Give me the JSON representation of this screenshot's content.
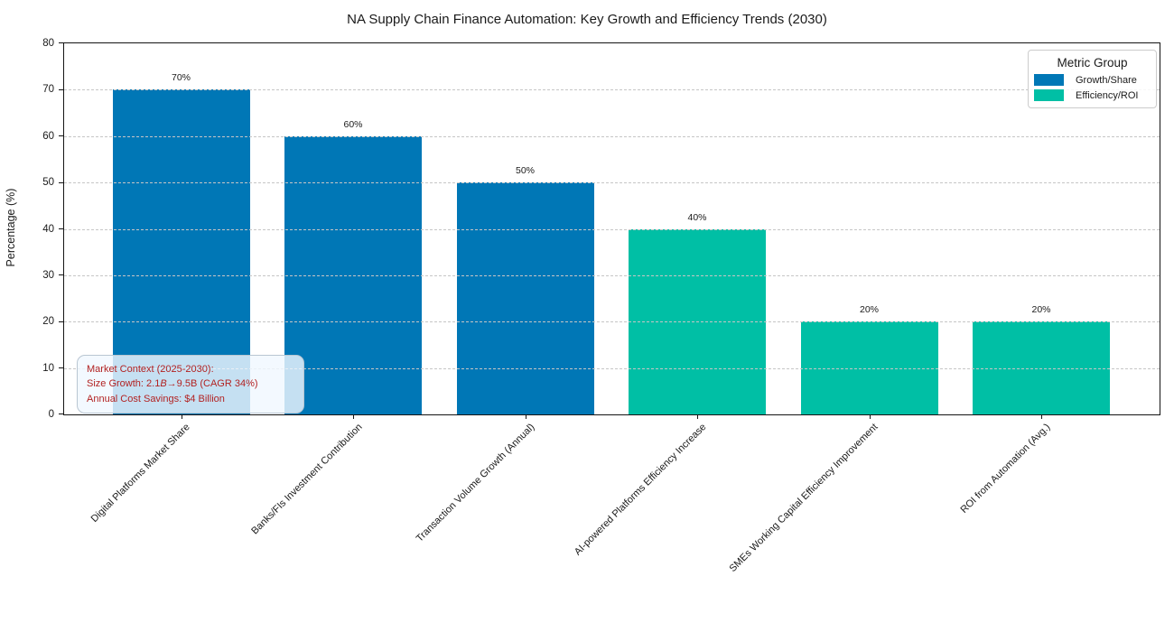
{
  "chart_data": {
    "type": "bar",
    "title": "NA Supply Chain Finance Automation: Key Growth and Efficiency Trends (2030)",
    "xlabel": "",
    "ylabel": "Percentage (%)",
    "ylim": [
      0,
      80
    ],
    "yticks": [
      0,
      10,
      20,
      30,
      40,
      50,
      60,
      70,
      80
    ],
    "grid": "horizontal-dashed",
    "categories": [
      "Digital Platforms Market Share",
      "Banks/FIs Investment Contribution",
      "Transaction Volume Growth (Annual)",
      "AI-powered Platforms Efficiency Increase",
      "SMEs Working Capital Efficiency Improvement",
      "ROI from Automation (Avg.)"
    ],
    "values": [
      70,
      60,
      50,
      40,
      20,
      20
    ],
    "bar_labels": [
      "70%",
      "60%",
      "50%",
      "40%",
      "20%",
      "20%"
    ],
    "groups": [
      "Growth/Share",
      "Growth/Share",
      "Growth/Share",
      "Efficiency/ROI",
      "Efficiency/ROI",
      "Efficiency/ROI"
    ],
    "group_colors": {
      "Growth/Share": "#0077b6",
      "Efficiency/ROI": "#00bfa5"
    },
    "legend": {
      "title": "Metric Group",
      "position": "upper-right",
      "items": [
        {
          "label": "Growth/Share",
          "color": "#0077b6"
        },
        {
          "label": "Efficiency/ROI",
          "color": "#00bfa5"
        }
      ]
    },
    "annotation": {
      "line1": "Market Context (2025-2030):",
      "line2_prefix": "Size Growth: 2.1",
      "line2_italic": "B",
      "line2_suffix": "→9.5B (CAGR 34%)",
      "line3": "Annual Cost Savings: $4 Billion",
      "text_color": "#b22222",
      "bg_color": "rgba(240,248,255,0.82)"
    }
  }
}
